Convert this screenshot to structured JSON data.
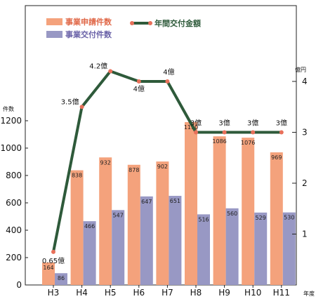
{
  "chart_data": {
    "type": "bar",
    "categories": [
      "H3",
      "H4",
      "H5",
      "H6",
      "H7",
      "H8",
      "H9",
      "H10",
      "H11"
    ],
    "series": [
      {
        "name": "事業申請件数",
        "kind": "bar",
        "axis": "left",
        "color": "#f4a27c",
        "values": [
          164,
          838,
          932,
          878,
          902,
          1190,
          1086,
          1076,
          969
        ]
      },
      {
        "name": "事業交付件数",
        "kind": "bar",
        "axis": "left",
        "color": "#9898c4",
        "values": [
          86,
          466,
          547,
          647,
          651,
          516,
          560,
          529,
          530
        ]
      },
      {
        "name": "年間交付金額",
        "kind": "line",
        "axis": "right",
        "color": "#2e5a3a",
        "values": [
          0.65,
          3.5,
          4.2,
          4,
          4,
          3,
          3,
          3,
          3
        ],
        "labels": [
          "0.65億",
          "3.5億",
          "4.2億",
          "4億",
          "4億",
          "3億",
          "3億",
          "3億",
          "3億"
        ]
      }
    ],
    "left_axis": {
      "unit": "件数",
      "ticks": [
        0,
        200,
        400,
        600,
        800,
        1000,
        1200
      ],
      "range": [
        0,
        1200
      ]
    },
    "right_axis": {
      "unit": "億円",
      "ticks": [
        1,
        2,
        3,
        4
      ],
      "range": [
        0,
        4
      ]
    },
    "x_unit": "年度",
    "legend": {
      "placement": "top-left"
    },
    "colors": {
      "line_marker": "#e8705a"
    }
  }
}
